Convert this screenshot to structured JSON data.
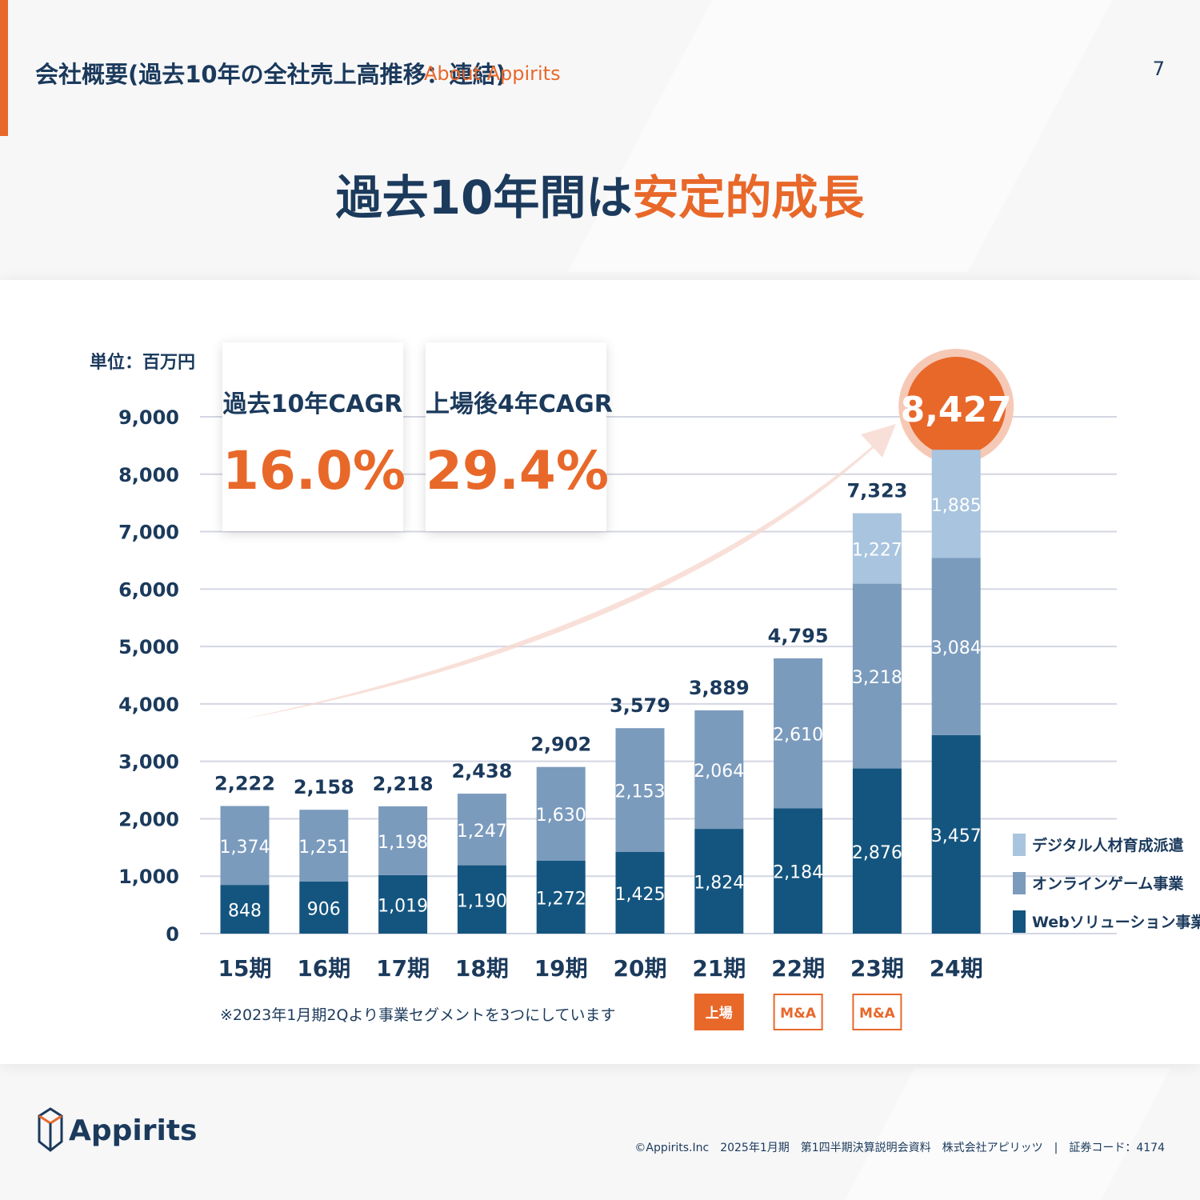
{
  "header": {
    "title": "会社概要(過去10年の全社売上高推移：連結)",
    "subtitle": "About Appirits",
    "page_number": "7"
  },
  "headline": {
    "part1": "過去10年間は",
    "part2": "安定的成長"
  },
  "colors": {
    "accent": "#e8682a",
    "navy": "#1b3a5c",
    "web": "#14557f",
    "game": "#7b9bbd",
    "digital": "#a9c4de"
  },
  "cagr": [
    {
      "label": "過去10年CAGR",
      "value": "16.0%"
    },
    {
      "label": "上場後4年CAGR",
      "value": "29.4%"
    }
  ],
  "chart_data": {
    "type": "bar",
    "stacked": true,
    "unit_label": "単位：百万円",
    "categories": [
      "15期",
      "16期",
      "17期",
      "18期",
      "19期",
      "20期",
      "21期",
      "22期",
      "23期",
      "24期"
    ],
    "series": [
      {
        "name": "Webソリューション事業",
        "color": "#14557f",
        "values": [
          848,
          906,
          1019,
          1190,
          1272,
          1425,
          1824,
          2184,
          2876,
          3457
        ]
      },
      {
        "name": "オンラインゲーム事業",
        "color": "#7b9bbd",
        "values": [
          1374,
          1251,
          1198,
          1247,
          1630,
          2153,
          2064,
          2610,
          3218,
          3084
        ]
      },
      {
        "name": "デジタル人材育成派遣",
        "color": "#a9c4de",
        "values": [
          null,
          null,
          null,
          null,
          null,
          null,
          null,
          null,
          1227,
          1885
        ]
      }
    ],
    "totals": [
      2222,
      2158,
      2218,
      2438,
      2902,
      3579,
      3889,
      4795,
      7323,
      8427
    ],
    "highlight_total": "8,427",
    "ylim": [
      0,
      9000
    ],
    "yticks": [
      0,
      1000,
      2000,
      3000,
      4000,
      5000,
      6000,
      7000,
      8000,
      9000
    ],
    "grid": true,
    "legend_position": "bottom-right",
    "legend_order": [
      "デジタル人材育成派遣",
      "オンラインゲーム事業",
      "Webソリューション事業"
    ],
    "badges": [
      {
        "category": "21期",
        "text": "上場",
        "style": "filled"
      },
      {
        "category": "22期",
        "text": "M&A",
        "style": "outline"
      },
      {
        "category": "23期",
        "text": "M&A",
        "style": "outline"
      }
    ],
    "note": "※2023年1月期2Qより事業セグメントを3つにしています"
  },
  "footer": {
    "logo_text": "Appirits",
    "copyright": "©Appirits.Inc　2025年1月期　第1四半期決算説明会資料　株式会社アピリッツ　|　証券コード：4174"
  }
}
